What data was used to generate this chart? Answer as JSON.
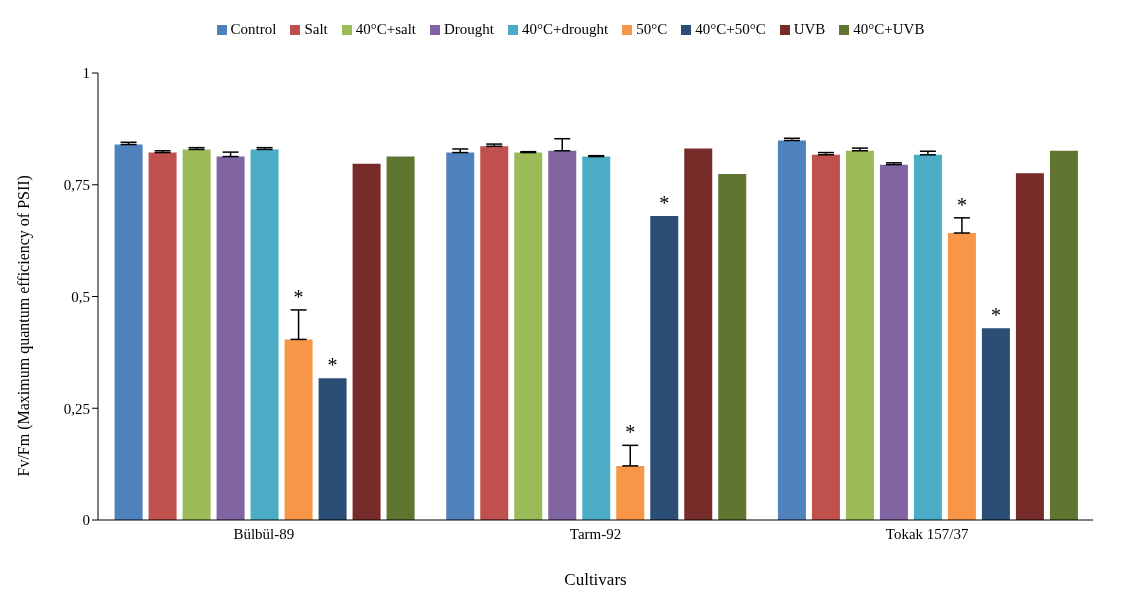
{
  "chart_data": {
    "type": "bar",
    "xlabel": "Cultivars",
    "ylabel": "Fv/Fm (Maximum quantum efficiency of PSII)",
    "categories": [
      "Bülbül-89",
      "Tarm-92",
      "Tokak 157/37"
    ],
    "series": [
      {
        "name": "Control",
        "color": "#4f81bd",
        "values": [
          0.84,
          0.822,
          0.849
        ],
        "errors": [
          0.005,
          0.008,
          0.005
        ]
      },
      {
        "name": "Salt",
        "color": "#c0504d",
        "values": [
          0.822,
          0.836,
          0.817
        ],
        "errors": [
          0.004,
          0.005,
          0.005
        ]
      },
      {
        "name": "40°C+salt",
        "color": "#9bbb59",
        "values": [
          0.829,
          0.822,
          0.826
        ],
        "errors": [
          0.004,
          0.002,
          0.006
        ]
      },
      {
        "name": "Drought",
        "color": "#8064a2",
        "values": [
          0.813,
          0.826,
          0.795
        ],
        "errors": [
          0.01,
          0.027,
          0.004
        ]
      },
      {
        "name": "40°C+drought",
        "color": "#4bacc6",
        "values": [
          0.829,
          0.813,
          0.817
        ],
        "errors": [
          0.004,
          0.002,
          0.008
        ]
      },
      {
        "name": "50°C",
        "color": "#f79646",
        "values": [
          0.404,
          0.121,
          0.642
        ],
        "errors": [
          0.066,
          0.046,
          0.034
        ],
        "value_labels": [
          "*",
          "*",
          "*"
        ]
      },
      {
        "name": "40°C+50°C",
        "color": "#2c4d75",
        "values": [
          0.317,
          0.68,
          0.429
        ],
        "errors": [
          null,
          null,
          null
        ],
        "value_labels": [
          "*",
          "*",
          "*"
        ]
      },
      {
        "name": "UVB",
        "color": "#772c2a",
        "values": [
          0.797,
          0.831,
          0.776
        ],
        "errors": [
          null,
          null,
          null
        ]
      },
      {
        "name": "40°C+UVB",
        "color": "#5f7530",
        "values": [
          0.813,
          0.774,
          0.826
        ],
        "errors": [
          null,
          null,
          null
        ]
      }
    ],
    "ylim": [
      0,
      1
    ],
    "yticks": [
      0,
      {
        "value": 0.25,
        "label": "0,25"
      },
      {
        "value": 0.5,
        "label": "0,5"
      },
      {
        "value": 0.75,
        "label": "0,75"
      },
      1
    ],
    "grid": false,
    "legend": "top"
  }
}
